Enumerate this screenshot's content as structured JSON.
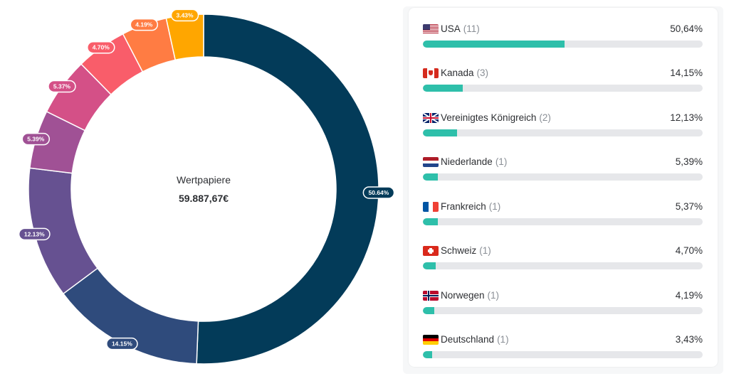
{
  "donut": {
    "center_label": "Wertpapiere",
    "center_value": "59.887,67€"
  },
  "chart_data": {
    "type": "pie",
    "categories": [
      "USA",
      "Kanada",
      "Vereinigtes Königreich",
      "Niederlande",
      "Frankreich",
      "Schweiz",
      "Norwegen",
      "Deutschland"
    ],
    "values": [
      50.64,
      14.15,
      12.13,
      5.39,
      5.37,
      4.7,
      4.19,
      3.43
    ],
    "labels": [
      "50.64%",
      "14.15%",
      "12.13%",
      "5.39%",
      "5.37%",
      "4.70%",
      "4.19%",
      "3.43%"
    ],
    "colors": [
      "#033b59",
      "#2f4b7c",
      "#665191",
      "#a05195",
      "#d45087",
      "#f95d6a",
      "#ff7c43",
      "#ffa600"
    ]
  },
  "countries": [
    {
      "name": "USA",
      "count": "(11)",
      "pct": "50,64%",
      "fraction": 0.5064,
      "flag": "flag-usa-icon"
    },
    {
      "name": "Kanada",
      "count": "(3)",
      "pct": "14,15%",
      "fraction": 0.1415,
      "flag": "flag-canada-icon"
    },
    {
      "name": "Vereinigtes Königreich",
      "count": "(2)",
      "pct": "12,13%",
      "fraction": 0.1213,
      "flag": "flag-uk-icon"
    },
    {
      "name": "Niederlande",
      "count": "(1)",
      "pct": "5,39%",
      "fraction": 0.0539,
      "flag": "flag-netherlands-icon"
    },
    {
      "name": "Frankreich",
      "count": "(1)",
      "pct": "5,37%",
      "fraction": 0.0537,
      "flag": "flag-france-icon"
    },
    {
      "name": "Schweiz",
      "count": "(1)",
      "pct": "4,70%",
      "fraction": 0.047,
      "flag": "flag-switzerland-icon"
    },
    {
      "name": "Norwegen",
      "count": "(1)",
      "pct": "4,19%",
      "fraction": 0.0419,
      "flag": "flag-norway-icon"
    },
    {
      "name": "Deutschland",
      "count": "(1)",
      "pct": "3,43%",
      "fraction": 0.0343,
      "flag": "flag-germany-icon"
    }
  ]
}
